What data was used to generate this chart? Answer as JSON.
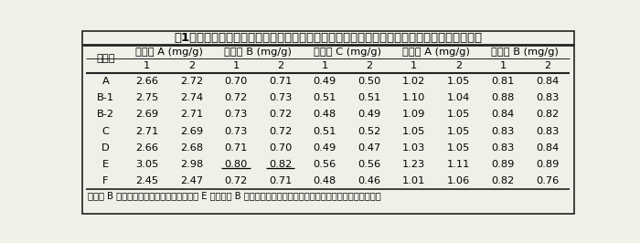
{
  "title": "表1　標準作業手順書に従って異なる試験室で測定した紫黒米と黒大豆の総アントシアニン量",
  "col_groups": [
    {
      "label": "紫黒米 A (mg/g)"
    },
    {
      "label": "紫黒米 B (mg/g)"
    },
    {
      "label": "紫黒米 C (mg/g)"
    },
    {
      "label": "黒大豆 A (mg/g)"
    },
    {
      "label": "黒大豆 B (mg/g)"
    }
  ],
  "row_header": "試験室",
  "rows": [
    {
      "label": "A",
      "values": [
        "2.66",
        "2.72",
        "0.70",
        "0.71",
        "0.49",
        "0.50",
        "1.02",
        "1.05",
        "0.81",
        "0.84"
      ],
      "underline": []
    },
    {
      "label": "B-1",
      "values": [
        "2.75",
        "2.74",
        "0.72",
        "0.73",
        "0.51",
        "0.51",
        "1.10",
        "1.04",
        "0.88",
        "0.83"
      ],
      "underline": []
    },
    {
      "label": "B-2",
      "values": [
        "2.69",
        "2.71",
        "0.73",
        "0.72",
        "0.48",
        "0.49",
        "1.09",
        "1.05",
        "0.84",
        "0.82"
      ],
      "underline": []
    },
    {
      "label": "C",
      "values": [
        "2.71",
        "2.69",
        "0.73",
        "0.72",
        "0.51",
        "0.52",
        "1.05",
        "1.05",
        "0.83",
        "0.83"
      ],
      "underline": []
    },
    {
      "label": "D",
      "values": [
        "2.66",
        "2.68",
        "0.71",
        "0.70",
        "0.49",
        "0.47",
        "1.03",
        "1.05",
        "0.83",
        "0.84"
      ],
      "underline": []
    },
    {
      "label": "E",
      "values": [
        "3.05",
        "2.98",
        "0.80",
        "0.82",
        "0.56",
        "0.56",
        "1.23",
        "1.11",
        "0.89",
        "0.89"
      ],
      "underline": [
        2,
        3
      ]
    },
    {
      "label": "F",
      "values": [
        "2.45",
        "2.47",
        "0.72",
        "0.71",
        "0.48",
        "0.46",
        "1.01",
        "1.06",
        "0.82",
        "0.76"
      ],
      "underline": []
    }
  ],
  "footnote": "試験室 B は異なる２名が測定した。試験室 E の紫黒米 B の測定値（下線）はシングルグラブス検定での外れ値。",
  "bg_color": "#f0f0e8",
  "border_color": "#222222",
  "font_size_title": 9.5,
  "font_size_header": 8.2,
  "font_size_data": 8.2,
  "font_size_footnote": 7.2
}
